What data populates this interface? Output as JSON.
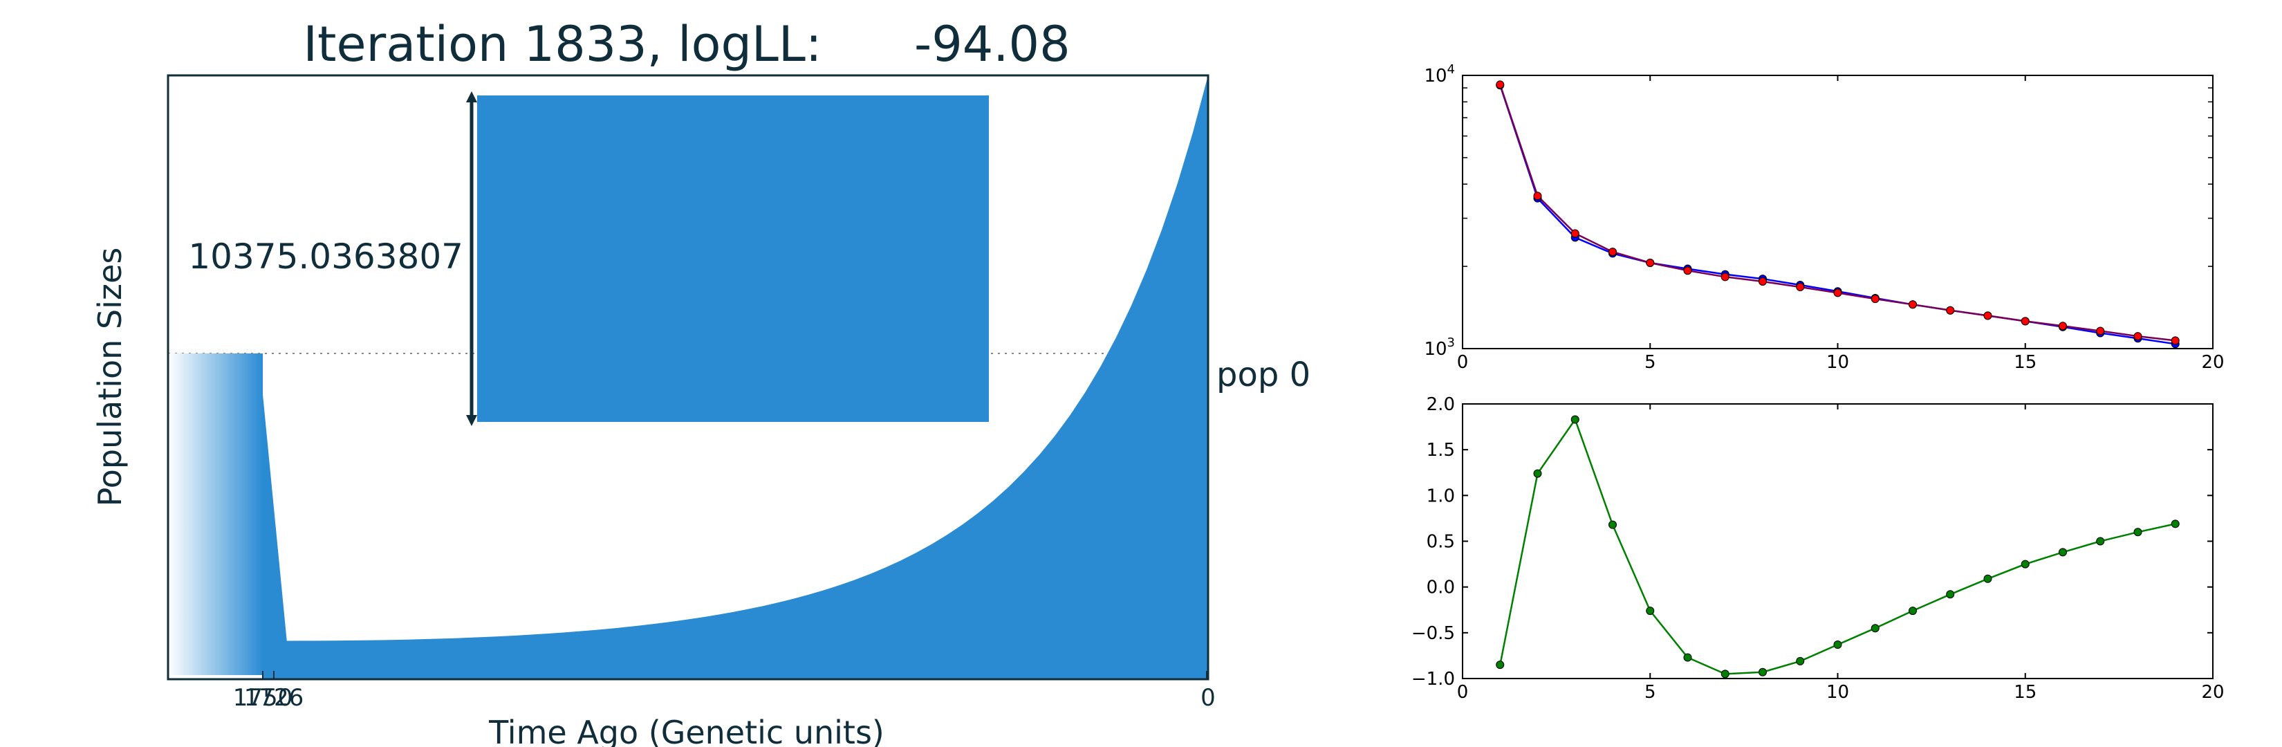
{
  "colors": {
    "accent": "#2a8bd3",
    "dark_text": "#0f2d3a",
    "black": "#000000",
    "series_blue": "#0000ff",
    "series_red": "#ff0000",
    "series_purple": "#7a0055",
    "series_green": "#008000"
  },
  "chart_data": [
    {
      "type": "area",
      "title": "Iteration 1833, logLL:      -94.08",
      "xlabel": "Time Ago (Genetic units)",
      "ylabel": "Population Sizes",
      "x_tick_labels": [
        "1750",
        "1726",
        "0"
      ],
      "size_bar_label": "10375.0363807",
      "population_label": "pop 0",
      "series": [
        {
          "name": "pop 0",
          "points": [
            {
              "time": 1750,
              "size": 10375.04
            },
            {
              "time": 1726,
              "size": 1400
            },
            {
              "time": 0,
              "size": 22000
            }
          ],
          "growth": "exponential"
        }
      ],
      "grid": false
    },
    {
      "type": "line",
      "y_scale": "log",
      "xlim": [
        0,
        20
      ],
      "ylim": [
        1000,
        10000
      ],
      "x_ticks": [
        "0",
        "5",
        "10",
        "15",
        "20"
      ],
      "y_ticks": [
        {
          "base": "10",
          "exp": "3"
        },
        {
          "base": "10",
          "exp": "4"
        }
      ],
      "x": [
        1,
        2,
        3,
        4,
        5,
        6,
        7,
        8,
        9,
        10,
        11,
        12,
        13,
        14,
        15,
        16,
        17,
        18,
        19
      ],
      "series": [
        {
          "values": [
            9200,
            3550,
            2550,
            2230,
            2060,
            1960,
            1870,
            1800,
            1710,
            1620,
            1530,
            1450,
            1380,
            1320,
            1260,
            1200,
            1140,
            1090,
            1040
          ]
        },
        {
          "values": [
            9250,
            3620,
            2640,
            2260,
            2060,
            1930,
            1830,
            1760,
            1680,
            1600,
            1520,
            1450,
            1380,
            1320,
            1260,
            1210,
            1160,
            1110,
            1070
          ]
        }
      ],
      "grid": false
    },
    {
      "type": "line",
      "xlim": [
        0,
        20
      ],
      "ylim": [
        -1.0,
        2.0
      ],
      "x_ticks": [
        "0",
        "5",
        "10",
        "15",
        "20"
      ],
      "y_ticks": [
        "2.0",
        "1.5",
        "1.0",
        "0.5",
        "0.0",
        "−0.5",
        "−1.0"
      ],
      "x": [
        1,
        2,
        3,
        4,
        5,
        6,
        7,
        8,
        9,
        10,
        11,
        12,
        13,
        14,
        15,
        16,
        17,
        18,
        19
      ],
      "series": [
        {
          "values": [
            -0.85,
            1.24,
            1.83,
            0.68,
            -0.26,
            -0.77,
            -0.95,
            -0.93,
            -0.81,
            -0.63,
            -0.45,
            -0.26,
            -0.08,
            0.09,
            0.25,
            0.38,
            0.5,
            0.6,
            0.69
          ]
        }
      ],
      "grid": false
    }
  ]
}
